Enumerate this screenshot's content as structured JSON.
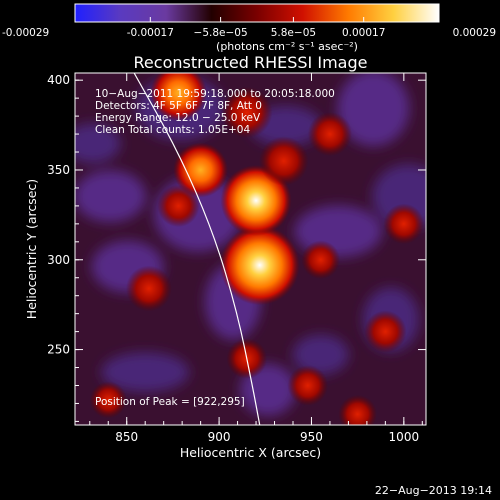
{
  "chart_data": {
    "type": "heatmap",
    "title": "Reconstructed RHESSI Image",
    "xlabel": "Heliocentric X (arcsec)",
    "ylabel": "Heliocentric Y (arcsec)",
    "xlim": [
      822,
      1012
    ],
    "ylim": [
      208,
      404
    ],
    "x_ticks": [
      850,
      900,
      950,
      1000
    ],
    "y_ticks": [
      250,
      300,
      350,
      400
    ],
    "x_tick_labels": [
      "850",
      "900",
      "950",
      "1000"
    ],
    "y_tick_labels": [
      "250",
      "300",
      "350",
      "400"
    ],
    "colorbar": {
      "range": [
        -0.00029,
        0.00029
      ],
      "ticks": [
        -0.00029,
        -0.00017,
        -5.8e-05,
        5.8e-05,
        0.00017,
        0.00029
      ],
      "tick_labels": [
        "-0.00029",
        "-0.00017",
        "−5.8e−05",
        "5.8e−05",
        "0.00017",
        "0.00029"
      ],
      "unit_label": "(photons cm⁻² s⁻¹ asec⁻²)"
    },
    "annotations": [
      "10−Aug−2011 19:59:18.000 to 20:05:18.000",
      "Detectors: 4F 5F 6F 7F 8F, Att 0",
      "Energy Range: 12.0 − 25.0 keV",
      "Clean     Total counts: 1.05E+04"
    ],
    "peak_label": "Position of Peak = [922,295]",
    "peak_position": [
      922,
      295
    ],
    "sources": [
      {
        "x": 922,
        "y": 297,
        "value": 0.00029
      },
      {
        "x": 920,
        "y": 333,
        "value": 0.00024
      },
      {
        "x": 890,
        "y": 350,
        "value": 0.00015
      },
      {
        "x": 935,
        "y": 355,
        "value": 0.00012
      },
      {
        "x": 878,
        "y": 393,
        "value": 0.00016
      },
      {
        "x": 915,
        "y": 382,
        "value": 0.00013
      },
      {
        "x": 862,
        "y": 284,
        "value": 0.0001
      },
      {
        "x": 878,
        "y": 330,
        "value": 8e-05
      },
      {
        "x": 960,
        "y": 370,
        "value": 9e-05
      },
      {
        "x": 990,
        "y": 260,
        "value": 8e-05
      },
      {
        "x": 1000,
        "y": 320,
        "value": 7e-05
      },
      {
        "x": 948,
        "y": 230,
        "value": 7e-05
      },
      {
        "x": 915,
        "y": 245,
        "value": 7e-05
      },
      {
        "x": 975,
        "y": 214,
        "value": 6e-05
      },
      {
        "x": 840,
        "y": 222,
        "value": 5e-05
      },
      {
        "x": 955,
        "y": 300,
        "value": 6e-05
      }
    ],
    "limb_curve": [
      [
        854,
        404
      ],
      [
        878,
        360
      ],
      [
        897,
        315
      ],
      [
        910,
        270
      ],
      [
        918,
        230
      ],
      [
        922,
        208
      ]
    ],
    "colormap": [
      "#2020ff",
      "#5a3ac0",
      "#6a3aa0",
      "#220000",
      "#7a0000",
      "#d01000",
      "#ff7a00",
      "#ffd040",
      "#ffffff"
    ]
  },
  "footer": {
    "date": "22−Aug−2013 19:14"
  }
}
